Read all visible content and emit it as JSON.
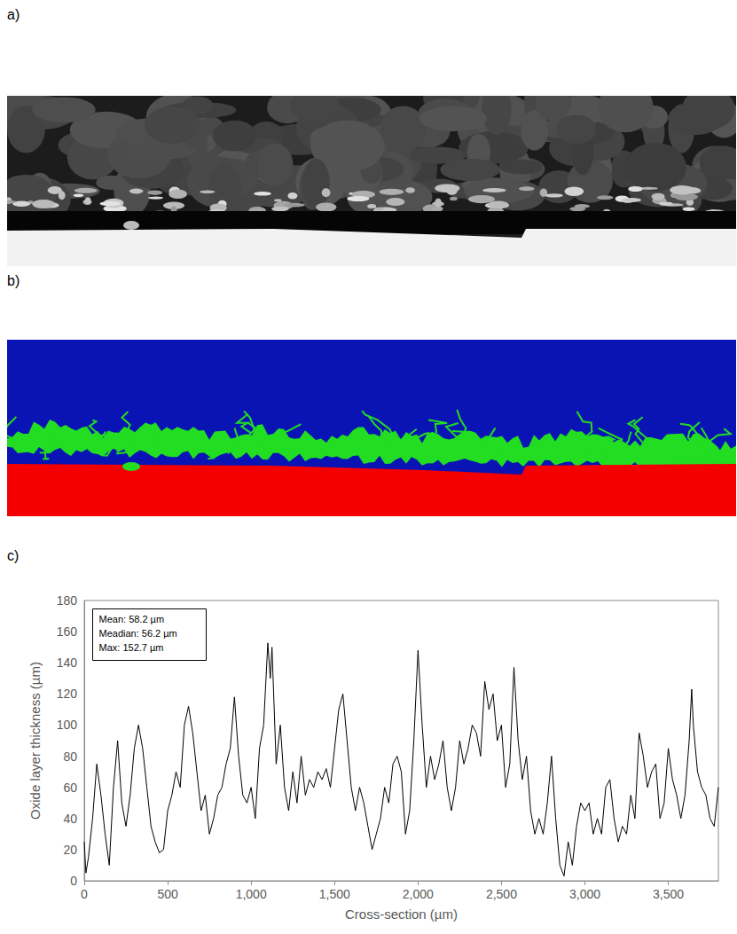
{
  "panel_labels": [
    "a)",
    "b)",
    "c)"
  ],
  "chart_data": {
    "type": "line",
    "xlabel": "Cross-section (µm)",
    "ylabel": "Oxide layer thickness (µm)",
    "annotations": [
      "Mean: 58.2 µm",
      "Meadian: 56.2 µm",
      "Max: 152.7 µm"
    ],
    "color": "#000000",
    "grid": false,
    "xlim": [
      0,
      3800
    ],
    "ylim": [
      0,
      180
    ],
    "xticks": [
      0,
      500,
      1000,
      1500,
      2000,
      2500,
      3000,
      3500
    ],
    "yticks": [
      0,
      20,
      40,
      60,
      80,
      100,
      120,
      140,
      160,
      180
    ],
    "x": [
      0,
      10,
      25,
      50,
      75,
      100,
      125,
      150,
      175,
      200,
      225,
      250,
      275,
      300,
      325,
      350,
      375,
      400,
      425,
      450,
      475,
      500,
      525,
      550,
      575,
      600,
      625,
      650,
      675,
      700,
      725,
      750,
      775,
      800,
      825,
      850,
      875,
      900,
      925,
      950,
      975,
      1000,
      1025,
      1050,
      1075,
      1100,
      1115,
      1125,
      1150,
      1175,
      1200,
      1225,
      1250,
      1275,
      1300,
      1325,
      1350,
      1375,
      1400,
      1425,
      1450,
      1475,
      1500,
      1525,
      1550,
      1575,
      1600,
      1625,
      1650,
      1675,
      1700,
      1725,
      1750,
      1775,
      1800,
      1825,
      1850,
      1875,
      1900,
      1925,
      1950,
      1975,
      2000,
      2025,
      2050,
      2075,
      2100,
      2125,
      2150,
      2175,
      2200,
      2225,
      2250,
      2275,
      2300,
      2325,
      2350,
      2375,
      2400,
      2425,
      2450,
      2475,
      2500,
      2525,
      2550,
      2575,
      2600,
      2625,
      2650,
      2675,
      2700,
      2725,
      2750,
      2775,
      2800,
      2825,
      2850,
      2875,
      2900,
      2925,
      2950,
      2975,
      3000,
      3025,
      3050,
      3075,
      3100,
      3125,
      3150,
      3175,
      3200,
      3225,
      3250,
      3275,
      3300,
      3325,
      3350,
      3375,
      3400,
      3425,
      3450,
      3475,
      3500,
      3525,
      3550,
      3575,
      3600,
      3625,
      3640,
      3650,
      3675,
      3700,
      3725,
      3750,
      3775,
      3800
    ],
    "values": [
      25,
      5,
      15,
      40,
      75,
      55,
      30,
      10,
      60,
      90,
      50,
      35,
      55,
      85,
      100,
      85,
      60,
      35,
      25,
      18,
      20,
      45,
      55,
      70,
      60,
      100,
      112,
      95,
      70,
      45,
      55,
      30,
      40,
      55,
      60,
      75,
      85,
      118,
      80,
      55,
      50,
      60,
      40,
      85,
      100,
      152.7,
      130,
      150,
      75,
      100,
      60,
      45,
      70,
      50,
      80,
      55,
      65,
      60,
      70,
      65,
      72,
      60,
      85,
      110,
      120,
      90,
      60,
      45,
      60,
      50,
      35,
      20,
      30,
      40,
      60,
      50,
      75,
      80,
      70,
      30,
      45,
      90,
      148,
      100,
      60,
      80,
      65,
      75,
      90,
      60,
      45,
      60,
      90,
      75,
      85,
      100,
      95,
      80,
      128,
      110,
      120,
      90,
      100,
      60,
      75,
      137,
      90,
      65,
      80,
      45,
      30,
      40,
      30,
      50,
      80,
      40,
      10,
      3,
      25,
      10,
      35,
      50,
      45,
      50,
      30,
      40,
      30,
      60,
      65,
      40,
      25,
      35,
      30,
      55,
      40,
      95,
      80,
      60,
      70,
      75,
      40,
      50,
      85,
      65,
      55,
      40,
      55,
      90,
      123,
      100,
      70,
      60,
      55,
      40,
      35,
      60
    ]
  }
}
